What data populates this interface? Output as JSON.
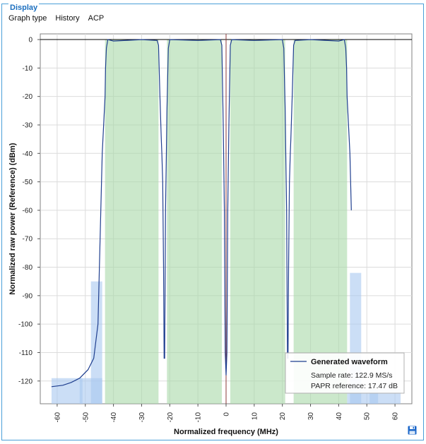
{
  "panel": {
    "title": "Display"
  },
  "tabs": [
    "Graph type",
    "History",
    "ACP"
  ],
  "icons": {
    "save": "save-icon"
  },
  "colors": {
    "trace": "#1f3f8f",
    "band_fill": "#a8d8a8",
    "bar_fill": "#a9c8f0",
    "grid": "#dcdcdc",
    "axis": "#000000"
  },
  "chart_data": {
    "type": "area",
    "xlabel": "Normalized frequency (MHz)",
    "ylabel": "Normalized raw power (Reference) (dBm)",
    "xlim": [
      -66,
      66
    ],
    "ylim": [
      -128,
      2
    ],
    "xticks": [
      -60,
      -50,
      -40,
      -30,
      -20,
      -10,
      0,
      10,
      20,
      30,
      40,
      50,
      60
    ],
    "yticks": [
      0,
      -10,
      -20,
      -30,
      -40,
      -50,
      -60,
      -70,
      -80,
      -90,
      -100,
      -110,
      -120
    ],
    "grid": true,
    "legend_position": "bottom-right",
    "bands": [
      {
        "x0": -43,
        "x1": -24
      },
      {
        "x0": -21,
        "x1": -1.5
      },
      {
        "x0": 1.5,
        "x1": 21
      },
      {
        "x0": 24,
        "x1": 43
      }
    ],
    "bars": [
      {
        "x0": -62,
        "x1": -51,
        "top": -119
      },
      {
        "x0": -52,
        "x1": -44,
        "top": -119
      },
      {
        "x0": -48,
        "x1": -44,
        "top": -85
      },
      {
        "x0": 44,
        "x1": 48,
        "top": -82
      },
      {
        "x0": 43,
        "x1": 54,
        "top": -123
      },
      {
        "x0": 51,
        "x1": 62,
        "top": -123
      }
    ],
    "series": [
      {
        "name": "Generated waveform",
        "x": [
          -62,
          -58,
          -55,
          -52,
          -49,
          -47,
          -45.5,
          -44.5,
          -44,
          -43.5,
          -43,
          -42.8,
          -42.5,
          -42,
          -40,
          -30,
          -24.5,
          -24,
          -23.5,
          -23,
          -22.8,
          -22.5,
          -22.2,
          -22,
          -21.8,
          -21.5,
          -21.2,
          -21,
          -20.5,
          -20,
          -10,
          -2,
          -1.5,
          -1,
          -0.6,
          -0.3,
          0,
          0.3,
          0.6,
          1,
          1.5,
          2,
          10,
          20,
          20.5,
          21,
          21.2,
          21.5,
          21.8,
          22,
          22.2,
          22.5,
          22.8,
          23,
          23.5,
          24,
          24.5,
          30,
          40,
          42,
          42.5,
          42.8,
          43,
          43.5,
          44,
          44.5
        ],
        "y": [
          -122,
          -121.5,
          -120.5,
          -119,
          -116,
          -112,
          -100,
          -60,
          -40,
          -30,
          -20,
          -10,
          -3,
          0,
          -0.5,
          0,
          -0.3,
          -2,
          -20,
          -35,
          -40,
          -50,
          -80,
          -112,
          -112,
          -60,
          -40,
          -25,
          -3,
          0,
          -0.3,
          0,
          -2,
          -30,
          -60,
          -110,
          -118,
          -110,
          -60,
          -30,
          -2,
          0,
          -0.3,
          0,
          -3,
          -25,
          -40,
          -60,
          -112,
          -112,
          -80,
          -50,
          -40,
          -35,
          -20,
          -2,
          -0.3,
          0,
          -0.5,
          0,
          -3,
          -10,
          -20,
          -30,
          -40,
          -60
        ]
      }
    ],
    "legend": {
      "title": "Generated waveform",
      "lines": [
        "Sample rate: 122.9 MS/s",
        "PAPR reference: 17.47 dB"
      ]
    }
  }
}
